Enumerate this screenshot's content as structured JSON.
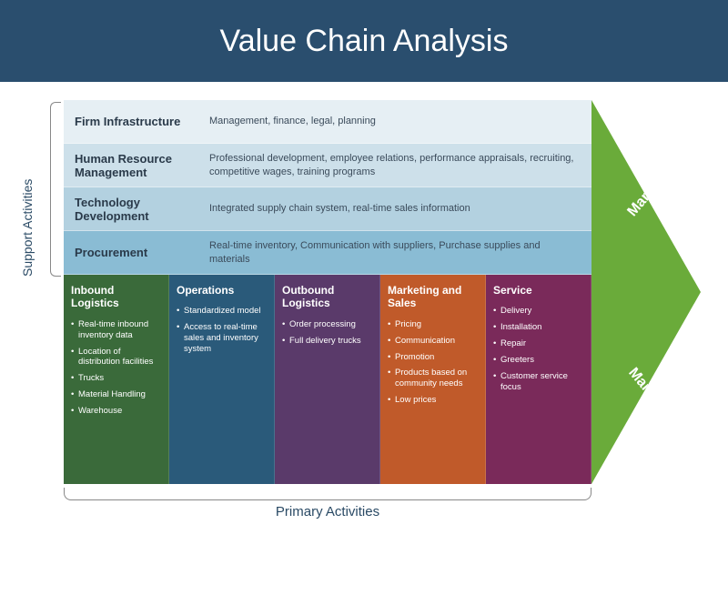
{
  "title": "Value Chain Analysis",
  "header_bg": "#2a4e6e",
  "support_label": "Support Activities",
  "primary_label": "Primary Activities",
  "margin_label": "Margin",
  "margin_color": "#6aab3a",
  "support_rows": [
    {
      "label": "Firm Infrastructure",
      "desc": "Management, finance, legal, planning",
      "bg": "#e6eff4"
    },
    {
      "label": "Human Resource Management",
      "desc": "Professional development, employee relations, performance appraisals, recruiting, competitive wages, training programs",
      "bg": "#cde0ea"
    },
    {
      "label": "Technology Development",
      "desc": "Integrated supply chain system, real-time sales information",
      "bg": "#b3d1e0"
    },
    {
      "label": "Procurement",
      "desc": "Real-time inventory, Communication with suppliers, Purchase supplies and materials",
      "bg": "#8abcd4"
    }
  ],
  "primary_cols": [
    {
      "title": "Inbound Logistics",
      "bg": "#3a6a3a",
      "items": [
        "Real-time inbound inventory data",
        "Location of distribution facilities",
        "Trucks",
        "Material Handling",
        "Warehouse"
      ]
    },
    {
      "title": "Operations",
      "bg": "#2a5a7a",
      "items": [
        "Standardized model",
        "Access to real-time sales and inventory system"
      ]
    },
    {
      "title": "Outbound Logistics",
      "bg": "#5a3a6a",
      "items": [
        "Order processing",
        "Full delivery trucks"
      ]
    },
    {
      "title": "Marketing and Sales",
      "bg": "#c05a2a",
      "items": [
        "Pricing",
        "Communication",
        "Promotion",
        "Products based on community needs",
        "Low prices"
      ]
    },
    {
      "title": "Service",
      "bg": "#7a2a5a",
      "items": [
        "Delivery",
        "Installation",
        "Repair",
        "Greeters",
        "Customer service focus"
      ]
    }
  ],
  "fonts": {
    "title_size": 34,
    "section_label_size": 15
  }
}
